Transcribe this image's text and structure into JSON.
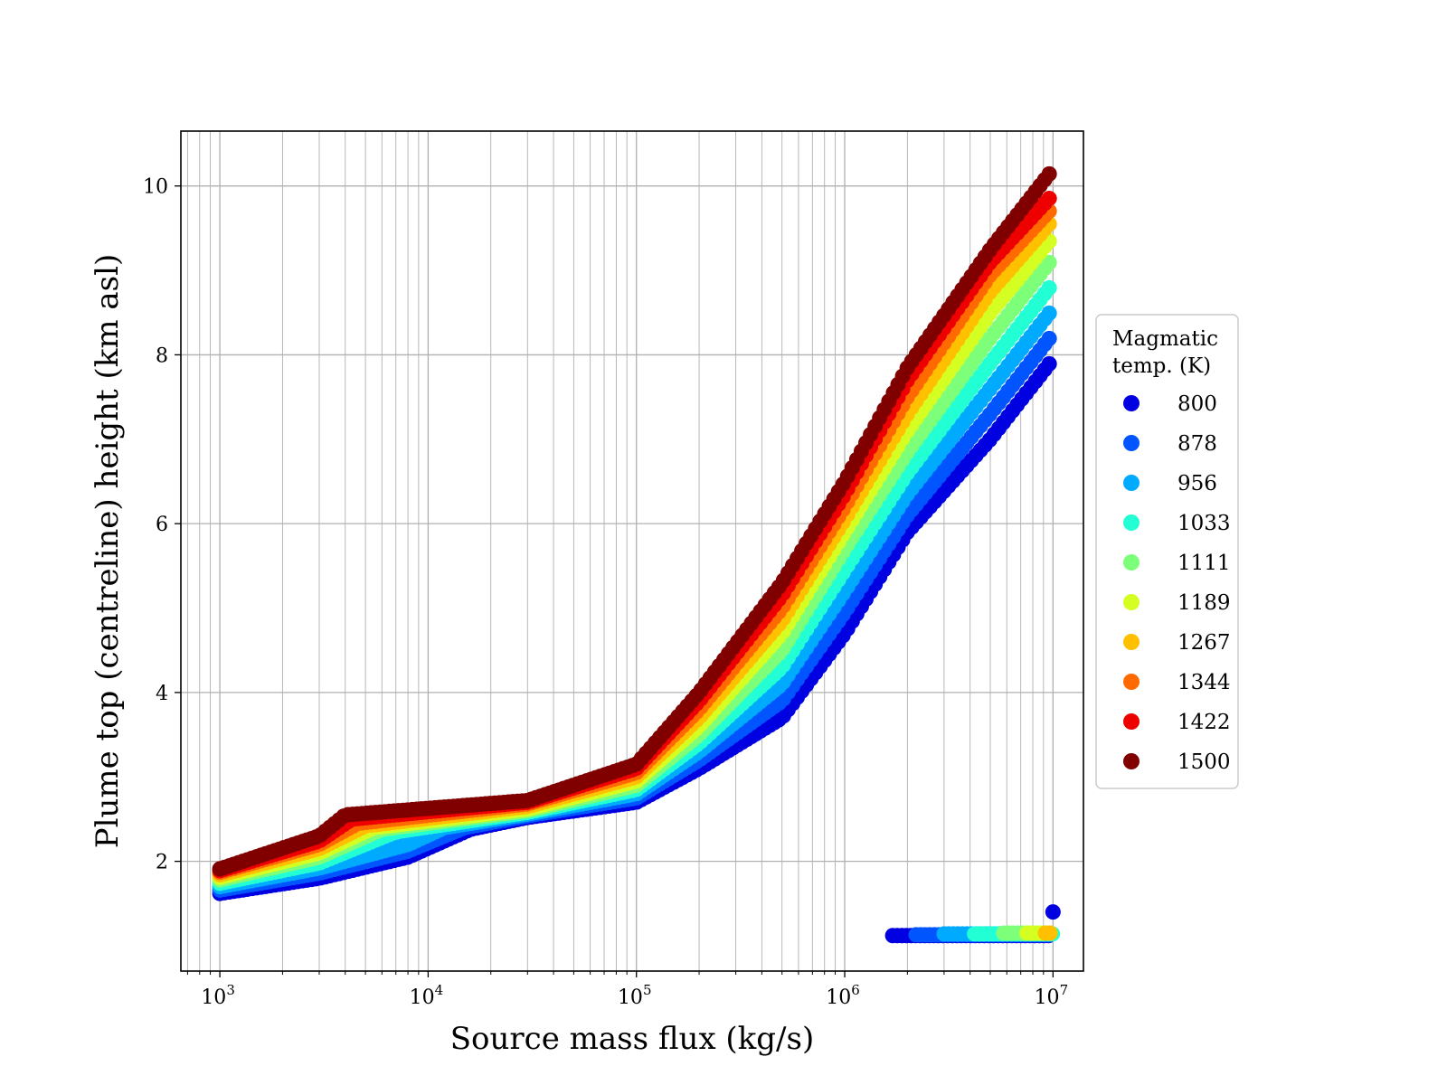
{
  "chart_data": {
    "type": "scatter",
    "title": "",
    "xlabel": "Source mass flux (kg/s)",
    "ylabel": "Plume top (centreline) height (km asl)",
    "xscale": "log",
    "xlim": [
      650,
      14000000
    ],
    "ylim": [
      0.7,
      10.65
    ],
    "xticks": [
      {
        "value": 1000,
        "base": "10",
        "exp": "3"
      },
      {
        "value": 10000,
        "base": "10",
        "exp": "4"
      },
      {
        "value": 100000,
        "base": "10",
        "exp": "5"
      },
      {
        "value": 1000000,
        "base": "10",
        "exp": "6"
      },
      {
        "value": 10000000,
        "base": "10",
        "exp": "7"
      }
    ],
    "yticks": [
      2,
      4,
      6,
      8,
      10
    ],
    "grid": true,
    "legend": {
      "title": "Magmatic\ntemp. (K)",
      "placement": "right, outside plot"
    },
    "series": [
      {
        "name": "800",
        "color": "#0000e0",
        "upper": [
          [
            1000,
            1.62
          ],
          [
            3000,
            1.8
          ],
          [
            8000,
            2.05
          ],
          [
            16000,
            2.38
          ],
          [
            30000,
            2.52
          ],
          [
            100000,
            2.7
          ],
          [
            200000,
            3.1
          ],
          [
            500000,
            3.7
          ],
          [
            1000000,
            4.7
          ],
          [
            2000000,
            5.9
          ],
          [
            5000000,
            7.0
          ],
          [
            10000000,
            7.95
          ]
        ],
        "lower": [
          [
            1700000,
            1.12
          ],
          [
            10000000,
            1.12
          ]
        ],
        "extra": [
          [
            10000000,
            1.4
          ]
        ]
      },
      {
        "name": "878",
        "color": "#0055ff",
        "upper": [
          [
            1000,
            1.66
          ],
          [
            3000,
            1.86
          ],
          [
            8000,
            2.12
          ],
          [
            15000,
            2.4
          ],
          [
            30000,
            2.54
          ],
          [
            100000,
            2.75
          ],
          [
            200000,
            3.2
          ],
          [
            500000,
            3.9
          ],
          [
            1000000,
            4.95
          ],
          [
            2000000,
            6.1
          ],
          [
            5000000,
            7.3
          ],
          [
            10000000,
            8.25
          ]
        ],
        "lower": [
          [
            2200000,
            1.13
          ],
          [
            10000000,
            1.13
          ]
        ]
      },
      {
        "name": "956",
        "color": "#00aaff",
        "upper": [
          [
            1000,
            1.7
          ],
          [
            3000,
            1.92
          ],
          [
            8000,
            2.2
          ],
          [
            12000,
            2.4
          ],
          [
            30000,
            2.56
          ],
          [
            100000,
            2.8
          ],
          [
            200000,
            3.3
          ],
          [
            500000,
            4.1
          ],
          [
            1000000,
            5.2
          ],
          [
            2000000,
            6.35
          ],
          [
            5000000,
            7.6
          ],
          [
            10000000,
            8.55
          ]
        ],
        "lower": [
          [
            3000000,
            1.14
          ],
          [
            10000000,
            1.14
          ]
        ]
      },
      {
        "name": "1033",
        "color": "#22ffd5",
        "upper": [
          [
            1000,
            1.74
          ],
          [
            3000,
            1.98
          ],
          [
            7000,
            2.35
          ],
          [
            30000,
            2.58
          ],
          [
            100000,
            2.85
          ],
          [
            200000,
            3.4
          ],
          [
            500000,
            4.3
          ],
          [
            1000000,
            5.45
          ],
          [
            2000000,
            6.6
          ],
          [
            5000000,
            7.9
          ],
          [
            10000000,
            8.85
          ]
        ],
        "lower": [
          [
            4200000,
            1.14
          ],
          [
            10000000,
            1.14
          ]
        ]
      },
      {
        "name": "1111",
        "color": "#7dff7a",
        "upper": [
          [
            1000,
            1.78
          ],
          [
            3000,
            2.05
          ],
          [
            6000,
            2.38
          ],
          [
            30000,
            2.6
          ],
          [
            100000,
            2.9
          ],
          [
            200000,
            3.5
          ],
          [
            500000,
            4.5
          ],
          [
            1000000,
            5.7
          ],
          [
            2000000,
            6.85
          ],
          [
            5000000,
            8.2
          ],
          [
            10000000,
            9.15
          ]
        ],
        "lower": [
          [
            5800000,
            1.15
          ],
          [
            10000000,
            1.15
          ]
        ]
      },
      {
        "name": "1189",
        "color": "#d5ff22",
        "upper": [
          [
            1000,
            1.81
          ],
          [
            3000,
            2.1
          ],
          [
            5500,
            2.4
          ],
          [
            30000,
            2.62
          ],
          [
            100000,
            2.95
          ],
          [
            200000,
            3.6
          ],
          [
            500000,
            4.7
          ],
          [
            1000000,
            5.9
          ],
          [
            2000000,
            7.1
          ],
          [
            5000000,
            8.5
          ],
          [
            10000000,
            9.4
          ]
        ],
        "lower": [
          [
            7500000,
            1.15
          ],
          [
            10000000,
            1.15
          ]
        ]
      },
      {
        "name": "1267",
        "color": "#ffc000",
        "upper": [
          [
            1000,
            1.84
          ],
          [
            3000,
            2.15
          ],
          [
            5000,
            2.42
          ],
          [
            30000,
            2.65
          ],
          [
            100000,
            3.0
          ],
          [
            200000,
            3.7
          ],
          [
            500000,
            4.85
          ],
          [
            1000000,
            6.05
          ],
          [
            2000000,
            7.3
          ],
          [
            5000000,
            8.75
          ],
          [
            10000000,
            9.6
          ]
        ],
        "lower": [
          [
            9200000,
            1.15
          ],
          [
            10000000,
            1.15
          ]
        ]
      },
      {
        "name": "1344",
        "color": "#ff6a00",
        "upper": [
          [
            1000,
            1.87
          ],
          [
            3000,
            2.2
          ],
          [
            4600,
            2.45
          ],
          [
            30000,
            2.68
          ],
          [
            100000,
            3.05
          ],
          [
            200000,
            3.8
          ],
          [
            500000,
            5.0
          ],
          [
            1000000,
            6.2
          ],
          [
            2000000,
            7.5
          ],
          [
            5000000,
            8.95
          ],
          [
            10000000,
            9.75
          ]
        ]
      },
      {
        "name": "1422",
        "color": "#ee0000",
        "upper": [
          [
            1000,
            1.89
          ],
          [
            3000,
            2.24
          ],
          [
            4300,
            2.5
          ],
          [
            30000,
            2.7
          ],
          [
            100000,
            3.1
          ],
          [
            200000,
            3.9
          ],
          [
            500000,
            5.15
          ],
          [
            1000000,
            6.35
          ],
          [
            2000000,
            7.7
          ],
          [
            5000000,
            9.1
          ],
          [
            10000000,
            9.9
          ]
        ]
      },
      {
        "name": "1500",
        "color": "#800000",
        "upper": [
          [
            1000,
            1.91
          ],
          [
            3000,
            2.3
          ],
          [
            4000,
            2.55
          ],
          [
            30000,
            2.72
          ],
          [
            100000,
            3.15
          ],
          [
            200000,
            4.0
          ],
          [
            500000,
            5.3
          ],
          [
            1000000,
            6.5
          ],
          [
            2000000,
            7.85
          ],
          [
            5000000,
            9.25
          ],
          [
            10000000,
            10.2
          ]
        ]
      }
    ]
  }
}
